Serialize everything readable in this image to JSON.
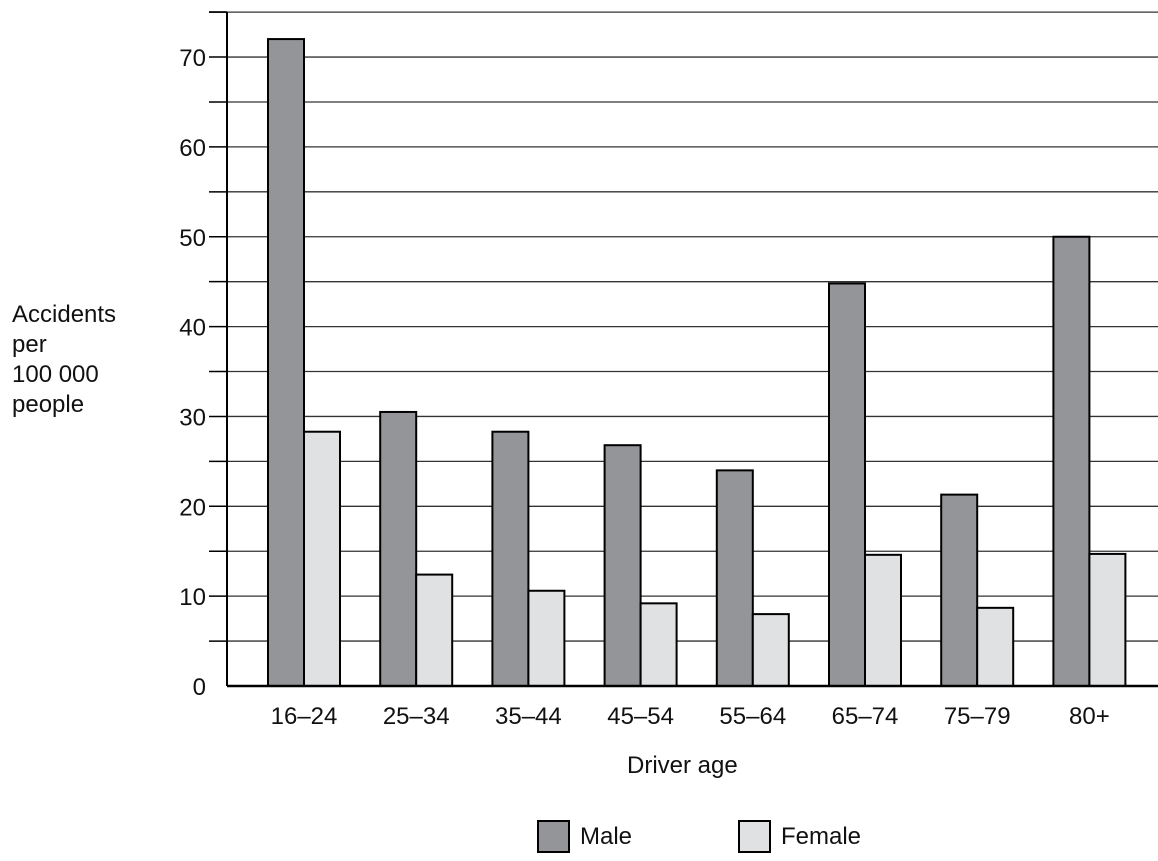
{
  "chart_data": {
    "type": "bar",
    "categories": [
      "16–24",
      "25–34",
      "35–44",
      "45–54",
      "55–64",
      "65–74",
      "75–79",
      "80+"
    ],
    "series": [
      {
        "name": "Male",
        "values": [
          72,
          30.5,
          28.3,
          26.8,
          24,
          44.8,
          21.3,
          50
        ],
        "color": "#939598"
      },
      {
        "name": "Female",
        "values": [
          28.3,
          12.4,
          10.6,
          9.2,
          8,
          14.6,
          8.7,
          14.7
        ],
        "color": "#e0e1e2"
      }
    ],
    "title": "",
    "xlabel": "Driver age",
    "ylabel_lines": [
      "Accidents",
      "per",
      "100 000",
      "people"
    ],
    "ylim": [
      0,
      75
    ],
    "yticks": [
      0,
      10,
      20,
      30,
      40,
      50,
      60,
      70
    ],
    "minor_step": 5,
    "grid": true,
    "legend": "bottom"
  }
}
